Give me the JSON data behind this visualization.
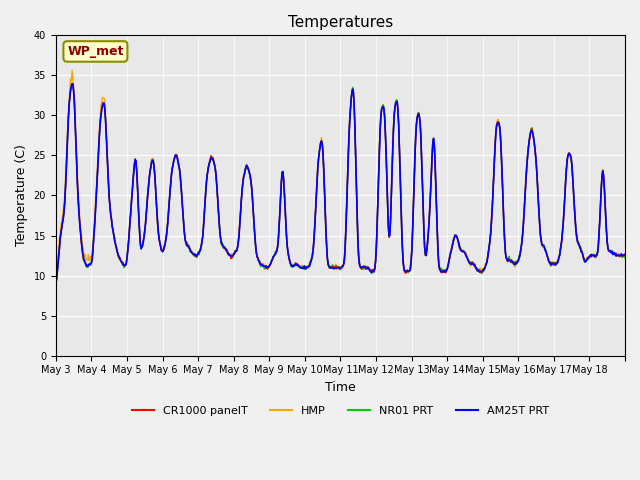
{
  "title": "Temperatures",
  "xlabel": "Time",
  "ylabel": "Temperature (C)",
  "ylim": [
    0,
    40
  ],
  "yticks": [
    0,
    5,
    10,
    15,
    20,
    25,
    30,
    35,
    40
  ],
  "background_color": "#e8e8e8",
  "fig_background": "#f0f0f0",
  "legend_label": "WP_met",
  "series_colors": {
    "CR1000 panelT": "#ff0000",
    "HMP": "#ffa500",
    "NR01 PRT": "#00cc00",
    "AM25T PRT": "#0000ff"
  },
  "x_day_labels": [
    "May 3",
    "May 4",
    "May 5",
    "May 6",
    "May 7",
    "May 8",
    "May 9",
    "May 10",
    "May 11",
    "May 12",
    "May 13",
    "May 14",
    "May 15",
    "May 16",
    "May 17",
    "May 18"
  ],
  "num_days": 16,
  "points_per_day": 48,
  "base_temps": [
    [
      8.0,
      15.0,
      18.0,
      32.5,
      35.0,
      19.0,
      12.5,
      11.0,
      12.0
    ],
    [
      10.0,
      18.5,
      30.0,
      32.5,
      19.0,
      15.0,
      12.5,
      11.5,
      11.0
    ],
    [
      11.5,
      19.0,
      26.5,
      12.5,
      15.0,
      22.5,
      25.5,
      15.0,
      12.5
    ],
    [
      12.5,
      15.0,
      23.0,
      25.5,
      23.0,
      14.0,
      13.5,
      12.5,
      12.5
    ],
    [
      12.5,
      14.0,
      23.0,
      25.0,
      23.5,
      14.0,
      13.5,
      12.5,
      12.0
    ],
    [
      13.0,
      13.0,
      22.0,
      24.0,
      22.0,
      12.5,
      11.5,
      11.0,
      11.0
    ],
    [
      11.0,
      12.5,
      13.0,
      25.5,
      13.0,
      11.0,
      11.5,
      11.0,
      11.0
    ],
    [
      11.0,
      11.0,
      13.0,
      25.0,
      28.0,
      11.0,
      11.0,
      11.0,
      11.0
    ],
    [
      11.0,
      11.0,
      29.5,
      35.5,
      11.0,
      11.0,
      11.0,
      10.5,
      10.5
    ],
    [
      10.5,
      31.0,
      31.5,
      10.5,
      31.0,
      32.5,
      10.5,
      10.5,
      10.5
    ],
    [
      10.5,
      30.0,
      30.5,
      10.5,
      16.5,
      30.5,
      10.5,
      10.5,
      10.5
    ],
    [
      10.5,
      13.5,
      15.5,
      13.0,
      13.0,
      11.5,
      11.5,
      10.5,
      10.5
    ],
    [
      10.5,
      11.5,
      16.0,
      29.5,
      29.0,
      12.0,
      12.0,
      11.5,
      11.5
    ],
    [
      11.5,
      14.5,
      25.0,
      29.0,
      25.0,
      14.0,
      13.5,
      11.5,
      11.5
    ],
    [
      11.5,
      11.5,
      15.0,
      25.5,
      25.0,
      14.5,
      13.5,
      11.5,
      12.5
    ],
    [
      12.5,
      12.5,
      12.5,
      25.5,
      13.0,
      13.0,
      12.5,
      12.5,
      12.5
    ]
  ]
}
